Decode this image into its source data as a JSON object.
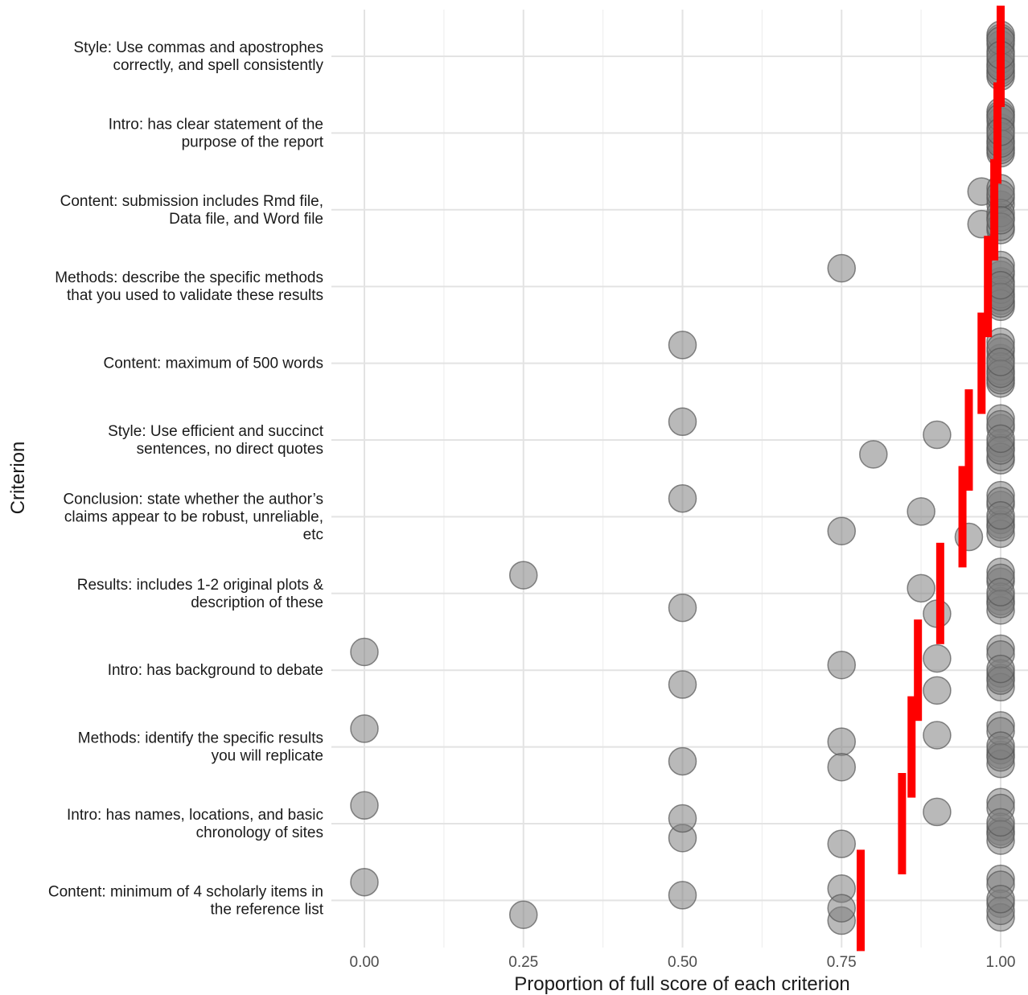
{
  "chart_data": {
    "type": "scatter",
    "xlabel": "Proportion of full score of each criterion",
    "ylabel": "Criterion",
    "xlim": [
      0,
      1
    ],
    "x_ticks": [
      "0.00",
      "0.25",
      "0.50",
      "0.75",
      "1.00"
    ],
    "x_tick_values": [
      0,
      0.25,
      0.5,
      0.75,
      1.0
    ],
    "grid": true,
    "point_color": "#7f7f7f",
    "mean_color": "#ff0000",
    "categories": [
      {
        "label_lines": [
          "Style: Use commas and apostrophes",
          "correctly, and spell consistently"
        ],
        "mean": 1.0,
        "points": [
          1.0,
          1.0,
          1.0,
          1.0,
          1.0,
          1.0,
          1.0,
          1.0,
          1.0,
          1.0,
          1.0,
          1.0
        ]
      },
      {
        "label_lines": [
          "Intro: has clear statement of the",
          "purpose of the report"
        ],
        "mean": 0.995,
        "points": [
          1.0,
          1.0,
          1.0,
          1.0,
          1.0,
          1.0,
          1.0,
          1.0,
          1.0,
          1.0,
          1.0,
          1.0
        ]
      },
      {
        "label_lines": [
          "Content: submission includes Rmd file,",
          "Data file, and Word file"
        ],
        "mean": 0.99,
        "points": [
          0.97,
          0.97,
          1.0,
          1.0,
          1.0,
          1.0,
          1.0,
          1.0,
          1.0,
          1.0,
          1.0
        ]
      },
      {
        "label_lines": [
          "Methods: describe the specific methods",
          "that you used to validate these results"
        ],
        "mean": 0.98,
        "points": [
          0.75,
          1.0,
          1.0,
          1.0,
          1.0,
          1.0,
          1.0,
          1.0,
          1.0,
          1.0,
          1.0,
          1.0
        ]
      },
      {
        "label_lines": [
          "Content: maximum of 500 words"
        ],
        "mean": 0.97,
        "points": [
          0.5,
          1.0,
          1.0,
          1.0,
          1.0,
          1.0,
          1.0,
          1.0,
          1.0,
          1.0,
          1.0,
          1.0
        ]
      },
      {
        "label_lines": [
          "Style: Use efficient and succinct",
          "sentences, no direct quotes"
        ],
        "mean": 0.95,
        "points": [
          0.5,
          0.8,
          0.9,
          1.0,
          1.0,
          1.0,
          1.0,
          1.0,
          1.0,
          1.0,
          1.0,
          1.0
        ]
      },
      {
        "label_lines": [
          "Conclusion: state whether the author’s",
          "claims appear to be robust, unreliable,",
          "etc"
        ],
        "mean": 0.94,
        "points": [
          0.5,
          0.75,
          0.875,
          0.95,
          1.0,
          1.0,
          1.0,
          1.0,
          1.0,
          1.0,
          1.0,
          1.0
        ]
      },
      {
        "label_lines": [
          "Results: includes 1-2 original plots &",
          "description of these"
        ],
        "mean": 0.905,
        "points": [
          0.25,
          0.5,
          0.875,
          0.9,
          1.0,
          1.0,
          1.0,
          1.0,
          1.0,
          1.0,
          1.0,
          1.0
        ]
      },
      {
        "label_lines": [
          "Intro: has background to debate"
        ],
        "mean": 0.87,
        "points": [
          0.0,
          0.5,
          0.75,
          0.9,
          0.9,
          1.0,
          1.0,
          1.0,
          1.0,
          1.0,
          1.0,
          1.0
        ]
      },
      {
        "label_lines": [
          "Methods: identify the specific results",
          "you will replicate"
        ],
        "mean": 0.86,
        "points": [
          0.0,
          0.5,
          0.75,
          0.75,
          0.9,
          1.0,
          1.0,
          1.0,
          1.0,
          1.0,
          1.0,
          1.0
        ]
      },
      {
        "label_lines": [
          "Intro: has names, locations, and basic",
          "chronology of sites"
        ],
        "mean": 0.845,
        "points": [
          0.0,
          0.5,
          0.5,
          0.75,
          0.9,
          1.0,
          1.0,
          1.0,
          1.0,
          1.0,
          1.0,
          1.0
        ]
      },
      {
        "label_lines": [
          "Content: minimum of 4 scholarly items in",
          "the reference list"
        ],
        "mean": 0.78,
        "points": [
          0.0,
          0.25,
          0.5,
          0.75,
          0.75,
          0.75,
          1.0,
          1.0,
          1.0,
          1.0,
          1.0,
          1.0
        ]
      }
    ]
  }
}
